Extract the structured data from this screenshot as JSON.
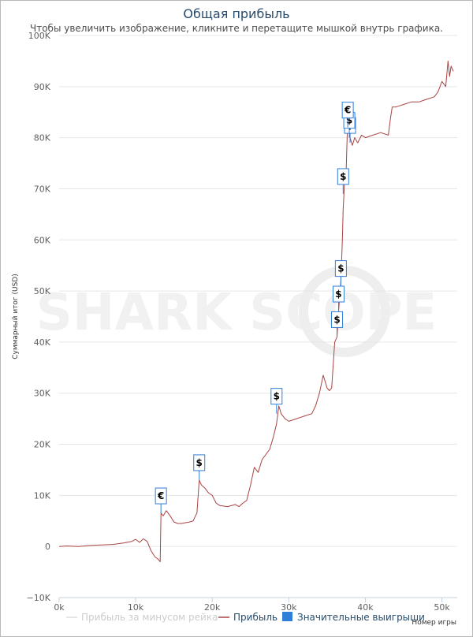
{
  "chart_data": {
    "type": "line",
    "title": "Общая прибыль",
    "subtitle": "Чтобы увеличить изображение, кликните и перетащите мышкой внутрь графика.",
    "ylabel": "Суммарный итог (USD)",
    "xlabel": "Номер игры",
    "ylim": [
      -10000,
      100000
    ],
    "xlim": [
      0,
      52000
    ],
    "yticks": [
      -10000,
      0,
      10000,
      20000,
      30000,
      40000,
      50000,
      60000,
      70000,
      80000,
      90000,
      100000
    ],
    "ytick_labels": [
      "−10K",
      "0",
      "10K",
      "20K",
      "30K",
      "40K",
      "50K",
      "60K",
      "70K",
      "80K",
      "90K",
      "100K"
    ],
    "xticks": [
      0,
      10000,
      20000,
      30000,
      40000,
      50000
    ],
    "xtick_labels": [
      "0k",
      "10k",
      "20k",
      "30k",
      "40k",
      "50k"
    ],
    "grid": "horizontal",
    "legend_position": "bottom",
    "series": [
      {
        "name": "Прибыль",
        "color": "#a94442",
        "x": [
          0,
          1000,
          2500,
          4000,
          5500,
          7000,
          8500,
          9500,
          10000,
          10500,
          11000,
          11500,
          12000,
          12500,
          13000,
          13200,
          13300,
          13600,
          14000,
          14500,
          15000,
          15500,
          16000,
          17000,
          17500,
          17800,
          18000,
          18300,
          18600,
          19000,
          19500,
          20000,
          20500,
          21000,
          22000,
          23000,
          23500,
          24000,
          24500,
          25000,
          25500,
          26000,
          26500,
          27000,
          27500,
          28000,
          28400,
          28700,
          29000,
          29500,
          30000,
          31000,
          32000,
          33000,
          33500,
          34000,
          34500,
          35000,
          35300,
          35600,
          36000,
          36300,
          36500,
          36600,
          36800,
          37000,
          37100,
          37200,
          37300,
          37500,
          37700,
          38000,
          38300,
          38600,
          39000,
          39500,
          40000,
          41000,
          42000,
          43000,
          43300,
          43500,
          44000,
          45000,
          46000,
          47000,
          48000,
          49000,
          49500,
          50000,
          50500,
          50800,
          51000,
          51200,
          51500
        ],
        "values": [
          0,
          100,
          0,
          200,
          300,
          400,
          700,
          1000,
          1400,
          800,
          1500,
          1000,
          -800,
          -2000,
          -2600,
          -3000,
          6500,
          6000,
          7000,
          6000,
          4800,
          4500,
          4500,
          4800,
          5000,
          6000,
          6500,
          13000,
          12000,
          11500,
          10500,
          10000,
          8500,
          8000,
          7800,
          8200,
          7800,
          8500,
          9000,
          12000,
          15500,
          14500,
          17000,
          18000,
          19000,
          21500,
          24000,
          27500,
          26000,
          25000,
          24500,
          25000,
          25500,
          26000,
          27500,
          30000,
          33500,
          31000,
          30500,
          31000,
          40000,
          41000,
          46000,
          48000,
          52000,
          60000,
          66000,
          69000,
          72000,
          74000,
          84000,
          80000,
          78500,
          80000,
          79000,
          80500,
          80000,
          80500,
          81000,
          80500,
          84000,
          86000,
          86000,
          86500,
          87000,
          87000,
          87500,
          88000,
          89000,
          91000,
          90000,
          95000,
          92000,
          94000,
          93000
        ]
      },
      {
        "name": "Прибыль за минусом рейка",
        "color": "#cccccc",
        "hidden": true
      },
      {
        "name": "Значительные выигрыши",
        "color": "#2f7ed8",
        "markers": [
          {
            "x": 13300,
            "y": 6500,
            "symbol": "€"
          },
          {
            "x": 18300,
            "y": 13000,
            "symbol": "$"
          },
          {
            "x": 28400,
            "y": 26000,
            "symbol": "$"
          },
          {
            "x": 36300,
            "y": 41000,
            "symbol": "$"
          },
          {
            "x": 36500,
            "y": 46000,
            "symbol": "$"
          },
          {
            "x": 36800,
            "y": 51000,
            "symbol": "$"
          },
          {
            "x": 37100,
            "y": 69000,
            "symbol": "$"
          },
          {
            "x": 38000,
            "y": 79000,
            "symbol": "$"
          },
          {
            "x": 37900,
            "y": 80000,
            "symbol": "$"
          },
          {
            "x": 37700,
            "y": 82000,
            "symbol": "€"
          }
        ]
      }
    ],
    "watermark": "SHARK SCOPE"
  }
}
